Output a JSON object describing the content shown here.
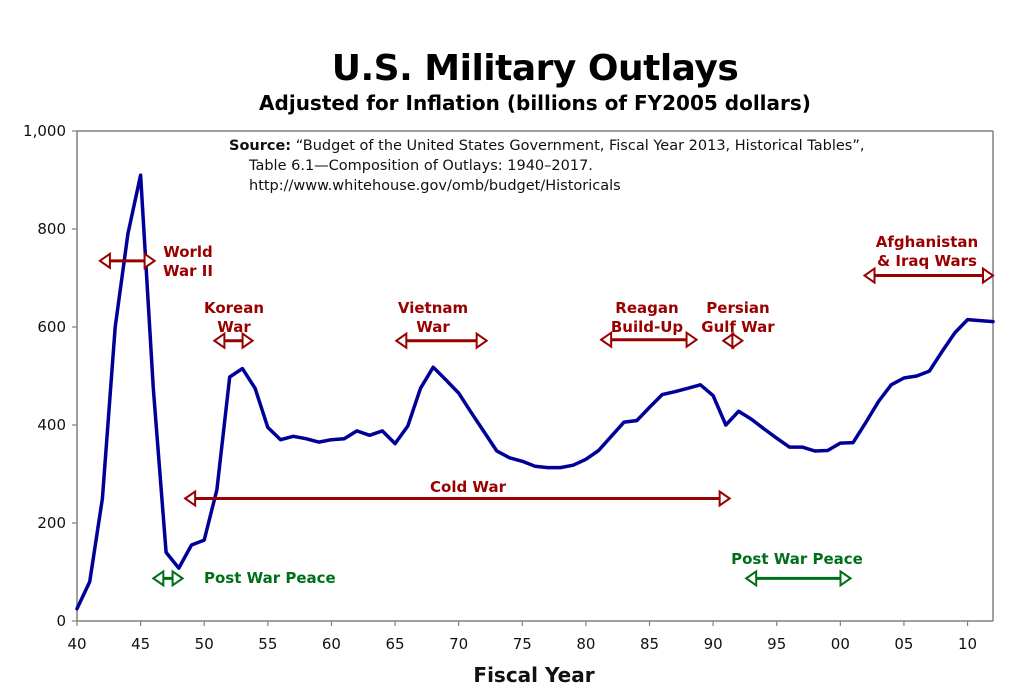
{
  "chart_data": {
    "type": "line",
    "title": "U.S. Military Outlays",
    "subtitle": "Adjusted for Inflation (billions of FY2005 dollars)",
    "xlabel": "Fiscal Year",
    "ylabel": "",
    "xlim": [
      1940,
      2012
    ],
    "ylim": [
      0,
      1000
    ],
    "grid": false,
    "y_ticks": [
      {
        "value": 0,
        "label": "0"
      },
      {
        "value": 200,
        "label": "200"
      },
      {
        "value": 400,
        "label": "400"
      },
      {
        "value": 600,
        "label": "600"
      },
      {
        "value": 800,
        "label": "800"
      },
      {
        "value": 1000,
        "label": "1,000"
      }
    ],
    "x_ticks": [
      {
        "value": 1940,
        "label": "40"
      },
      {
        "value": 1945,
        "label": "45"
      },
      {
        "value": 1950,
        "label": "50"
      },
      {
        "value": 1955,
        "label": "55"
      },
      {
        "value": 1960,
        "label": "60"
      },
      {
        "value": 1965,
        "label": "65"
      },
      {
        "value": 1970,
        "label": "70"
      },
      {
        "value": 1975,
        "label": "75"
      },
      {
        "value": 1980,
        "label": "80"
      },
      {
        "value": 1985,
        "label": "85"
      },
      {
        "value": 1990,
        "label": "90"
      },
      {
        "value": 1995,
        "label": "95"
      },
      {
        "value": 2000,
        "label": "00"
      },
      {
        "value": 2005,
        "label": "05"
      },
      {
        "value": 2010,
        "label": "10"
      }
    ],
    "series": [
      {
        "name": "Military Outlays",
        "color": "#000099",
        "x": [
          1940,
          1941,
          1942,
          1943,
          1944,
          1945,
          1946,
          1947,
          1948,
          1949,
          1950,
          1951,
          1952,
          1953,
          1954,
          1955,
          1956,
          1957,
          1958,
          1959,
          1960,
          1961,
          1962,
          1963,
          1964,
          1965,
          1966,
          1967,
          1968,
          1969,
          1970,
          1971,
          1972,
          1973,
          1974,
          1975,
          1976,
          1977,
          1978,
          1979,
          1980,
          1981,
          1982,
          1983,
          1984,
          1985,
          1986,
          1987,
          1988,
          1989,
          1990,
          1991,
          1992,
          1993,
          1994,
          1995,
          1996,
          1997,
          1998,
          1999,
          2000,
          2001,
          2002,
          2003,
          2004,
          2005,
          2006,
          2007,
          2008,
          2009,
          2010,
          2011,
          2012
        ],
        "values": [
          25,
          80,
          250,
          600,
          790,
          910,
          475,
          140,
          108,
          155,
          165,
          268,
          498,
          515,
          475,
          395,
          370,
          377,
          372,
          365,
          370,
          372,
          388,
          379,
          388,
          362,
          398,
          475,
          518,
          492,
          465,
          425,
          386,
          347,
          333,
          326,
          316,
          313,
          313,
          318,
          330,
          348,
          377,
          406,
          409,
          436,
          462,
          468,
          475,
          482,
          460,
          400,
          428,
          412,
          392,
          373,
          355,
          355,
          347,
          348,
          363,
          364,
          405,
          448,
          482,
          496,
          500,
          510,
          550,
          588,
          615,
          613,
          611
        ]
      }
    ],
    "annotations": [
      {
        "id": "wwii",
        "lines": [
          "World",
          "War II"
        ],
        "color": "red",
        "x_start": 1941.8,
        "x_end": 1946.1,
        "y": 735
      },
      {
        "id": "korean",
        "lines": [
          "Korean",
          "War"
        ],
        "color": "red",
        "x_start": 1950.8,
        "x_end": 1953.8,
        "y": 572
      },
      {
        "id": "vietnam",
        "lines": [
          "Vietnam",
          "War"
        ],
        "color": "red",
        "x_start": 1965.1,
        "x_end": 1972.2,
        "y": 572
      },
      {
        "id": "reagan",
        "lines": [
          "Reagan",
          "Build-Up"
        ],
        "color": "red",
        "x_start": 1981.2,
        "x_end": 1988.7,
        "y": 574
      },
      {
        "id": "gulf",
        "lines": [
          "Persian",
          "Gulf War"
        ],
        "color": "red",
        "x_start": 1990.8,
        "x_end": 1992.3,
        "y": 572
      },
      {
        "id": "afghan",
        "lines": [
          "Afghanistan",
          "& Iraq Wars"
        ],
        "color": "red",
        "x_start": 2001.9,
        "x_end": 2012,
        "y": 705
      },
      {
        "id": "coldwar",
        "lines": [
          "Cold War"
        ],
        "color": "red",
        "x_start": 1948.5,
        "x_end": 1991.3,
        "y": 250
      },
      {
        "id": "peace1",
        "lines": [
          "Post War Peace"
        ],
        "color": "green",
        "x_start": 1946.0,
        "x_end": 1948.3,
        "y": 87
      },
      {
        "id": "peace2",
        "lines": [
          "Post War Peace"
        ],
        "color": "green",
        "x_start": 1992.6,
        "x_end": 2000.8,
        "y": 87
      }
    ],
    "source": {
      "label": "Source:",
      "line1": "“Budget of the United States Government, Fiscal Year 2013, Historical Tables”,",
      "line2": "Table 6.1—Composition of Outlays: 1940–2017.",
      "line3": "http://www.whitehouse.gov/omb/budget/Historicals"
    },
    "colors": {
      "line": "#000099",
      "war_annotation": "#990000",
      "peace_annotation": "#006f1a",
      "axis": "#808080"
    }
  }
}
